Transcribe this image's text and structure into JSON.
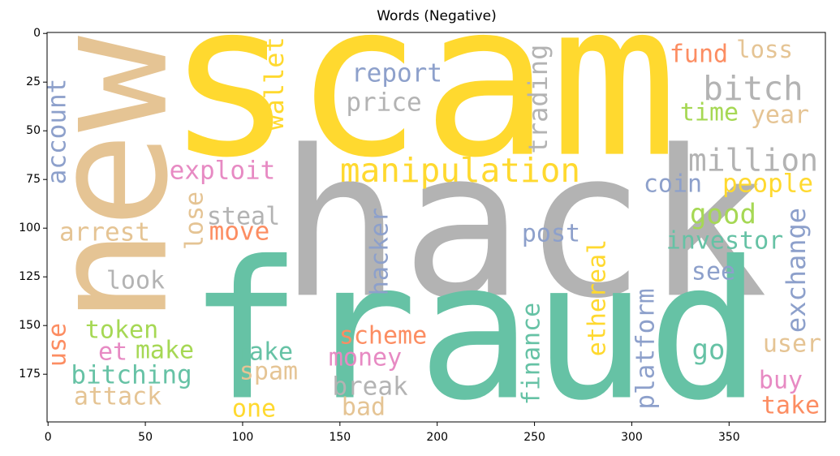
{
  "chart_data": {
    "type": "wordcloud",
    "title": "Words (Negative)",
    "xlim": [
      -0.5,
      399.5
    ],
    "ylim": [
      199.5,
      -0.5
    ],
    "xticks": [
      0,
      50,
      100,
      150,
      200,
      250,
      300,
      350
    ],
    "yticks": [
      0,
      25,
      50,
      75,
      100,
      125,
      150,
      175
    ],
    "words": [
      {
        "text": "scam",
        "color": "#ffd92f"
      },
      {
        "text": "hack",
        "color": "#b3b3b3"
      },
      {
        "text": "fraud",
        "color": "#66c2a5"
      },
      {
        "text": "new",
        "color": "#e5c494"
      },
      {
        "text": "manipulation",
        "color": "#ffd92f"
      },
      {
        "text": "million",
        "color": "#b3b3b3"
      },
      {
        "text": "bitch",
        "color": "#b3b3b3"
      },
      {
        "text": "report",
        "color": "#8da0cb"
      },
      {
        "text": "price",
        "color": "#b3b3b3"
      },
      {
        "text": "fund",
        "color": "#fc8d62"
      },
      {
        "text": "loss",
        "color": "#e5c494"
      },
      {
        "text": "time",
        "color": "#a6d854"
      },
      {
        "text": "year",
        "color": "#e5c494"
      },
      {
        "text": "wallet",
        "color": "#ffd92f"
      },
      {
        "text": "trading",
        "color": "#b3b3b3"
      },
      {
        "text": "account",
        "color": "#8da0cb"
      },
      {
        "text": "exploit",
        "color": "#e78ac3"
      },
      {
        "text": "coin",
        "color": "#8da0cb"
      },
      {
        "text": "people",
        "color": "#ffd92f"
      },
      {
        "text": "steal",
        "color": "#b3b3b3"
      },
      {
        "text": "good",
        "color": "#a6d854"
      },
      {
        "text": "arrest",
        "color": "#e5c494"
      },
      {
        "text": "lose",
        "color": "#e5c494"
      },
      {
        "text": "move",
        "color": "#fc8d62"
      },
      {
        "text": "post",
        "color": "#8da0cb"
      },
      {
        "text": "investor",
        "color": "#66c2a5"
      },
      {
        "text": "exchange",
        "color": "#8da0cb"
      },
      {
        "text": "hacker",
        "color": "#8da0cb"
      },
      {
        "text": "ethereal",
        "color": "#ffd92f"
      },
      {
        "text": "look",
        "color": "#b3b3b3"
      },
      {
        "text": "see",
        "color": "#8da0cb"
      },
      {
        "text": "platform",
        "color": "#8da0cb"
      },
      {
        "text": "use",
        "color": "#fc8d62"
      },
      {
        "text": "token",
        "color": "#a6d854"
      },
      {
        "text": "scheme",
        "color": "#fc8d62"
      },
      {
        "text": "finance",
        "color": "#66c2a5"
      },
      {
        "text": "et",
        "color": "#e78ac3"
      },
      {
        "text": "make",
        "color": "#a6d854"
      },
      {
        "text": "fake",
        "color": "#66c2a5"
      },
      {
        "text": "money",
        "color": "#e78ac3"
      },
      {
        "text": "go",
        "color": "#66c2a5"
      },
      {
        "text": "user",
        "color": "#e5c494"
      },
      {
        "text": "bitching",
        "color": "#66c2a5"
      },
      {
        "text": "spam",
        "color": "#e5c494"
      },
      {
        "text": "break",
        "color": "#b3b3b3"
      },
      {
        "text": "buy",
        "color": "#e78ac3"
      },
      {
        "text": "attack",
        "color": "#e5c494"
      },
      {
        "text": "one",
        "color": "#ffd92f"
      },
      {
        "text": "bad",
        "color": "#e5c494"
      },
      {
        "text": "take",
        "color": "#fc8d62"
      }
    ]
  }
}
